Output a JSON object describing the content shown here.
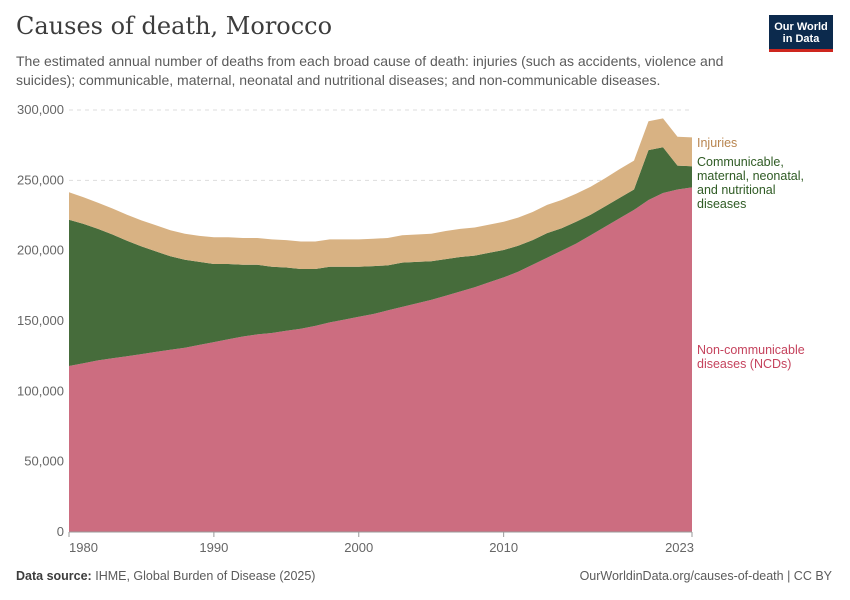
{
  "header": {
    "title": "Causes of death, Morocco",
    "subtitle": "The estimated annual number of deaths from each broad cause of death: injuries (such as accidents, violence and suicides); communicable, maternal, neonatal and nutritional diseases; and non-communicable diseases.",
    "logo_line1": "Our World",
    "logo_line2": "in Data"
  },
  "footer": {
    "source_label": "Data source:",
    "source_text": "IHME, Global Burden of Disease (2025)",
    "url": "OurWorldinData.org/causes-of-death | CC BY"
  },
  "colors": {
    "ncd": "#cc6d80",
    "communicable": "#466c3b",
    "injuries": "#d8b283",
    "injuries_label": "#b88550",
    "communicable_label": "#2f5b24",
    "ncd_label": "#c5435d"
  },
  "chart_data": {
    "type": "area",
    "stacked": true,
    "x": [
      1980,
      1981,
      1982,
      1983,
      1984,
      1985,
      1986,
      1987,
      1988,
      1989,
      1990,
      1991,
      1992,
      1993,
      1994,
      1995,
      1996,
      1997,
      1998,
      1999,
      2000,
      2001,
      2002,
      2003,
      2004,
      2005,
      2006,
      2007,
      2008,
      2009,
      2010,
      2011,
      2012,
      2013,
      2014,
      2015,
      2016,
      2017,
      2018,
      2019,
      2020,
      2021,
      2022,
      2023
    ],
    "series": [
      {
        "name": "Non-communicable diseases (NCDs)",
        "label_lines": [
          "Non-communicable",
          "diseases (NCDs)"
        ],
        "color": "#cc6d80",
        "values": [
          118000,
          120000,
          122000,
          123500,
          125000,
          126500,
          128000,
          129500,
          131000,
          133000,
          135000,
          137000,
          139000,
          140500,
          141500,
          143000,
          144500,
          146500,
          149000,
          151000,
          153000,
          155000,
          157500,
          160000,
          162500,
          165000,
          168000,
          171000,
          174000,
          177500,
          181000,
          185000,
          190000,
          195000,
          200000,
          205000,
          211000,
          217000,
          223000,
          229000,
          236000,
          241000,
          243500,
          245000
        ]
      },
      {
        "name": "Communicable, maternal, neonatal, and nutritional diseases",
        "label_lines": [
          "Communicable,",
          "maternal, neonatal,",
          "and nutritional",
          "diseases"
        ],
        "color": "#466c3b",
        "values": [
          104000,
          99000,
          93500,
          88000,
          82000,
          76500,
          71500,
          66500,
          62500,
          59000,
          55500,
          53500,
          51000,
          49500,
          47000,
          45000,
          42500,
          40500,
          39500,
          37500,
          35500,
          34000,
          32000,
          31500,
          29500,
          27500,
          26000,
          24500,
          22500,
          21000,
          19500,
          18500,
          17500,
          17500,
          16000,
          15500,
          14500,
          14500,
          14500,
          14500,
          35500,
          32500,
          17000,
          15000
        ]
      },
      {
        "name": "Injuries",
        "label_lines": [
          "Injuries"
        ],
        "color": "#d8b283",
        "values": [
          19500,
          19000,
          18500,
          18500,
          18500,
          18500,
          18500,
          18500,
          18500,
          18500,
          19000,
          19000,
          19000,
          19000,
          19500,
          19500,
          19500,
          19500,
          19500,
          19500,
          19500,
          19500,
          19500,
          19500,
          19500,
          19500,
          20000,
          20000,
          20000,
          20000,
          20000,
          20000,
          20000,
          20000,
          20000,
          20000,
          20000,
          20000,
          20500,
          20500,
          20500,
          20500,
          20500,
          20500
        ]
      }
    ],
    "y_ticks": [
      "0",
      "50,000",
      "100,000",
      "150,000",
      "200,000",
      "250,000",
      "300,000"
    ],
    "y_tick_values": [
      0,
      50000,
      100000,
      150000,
      200000,
      250000,
      300000
    ],
    "x_ticks": [
      "1980",
      "1990",
      "2000",
      "2010",
      "2023"
    ],
    "x_tick_values": [
      1980,
      1990,
      2000,
      2010,
      2023
    ],
    "ylim": [
      0,
      300000
    ],
    "xlim": [
      1980,
      2023
    ],
    "grid": "horizontal dashed",
    "legend": "right, inline labels"
  }
}
